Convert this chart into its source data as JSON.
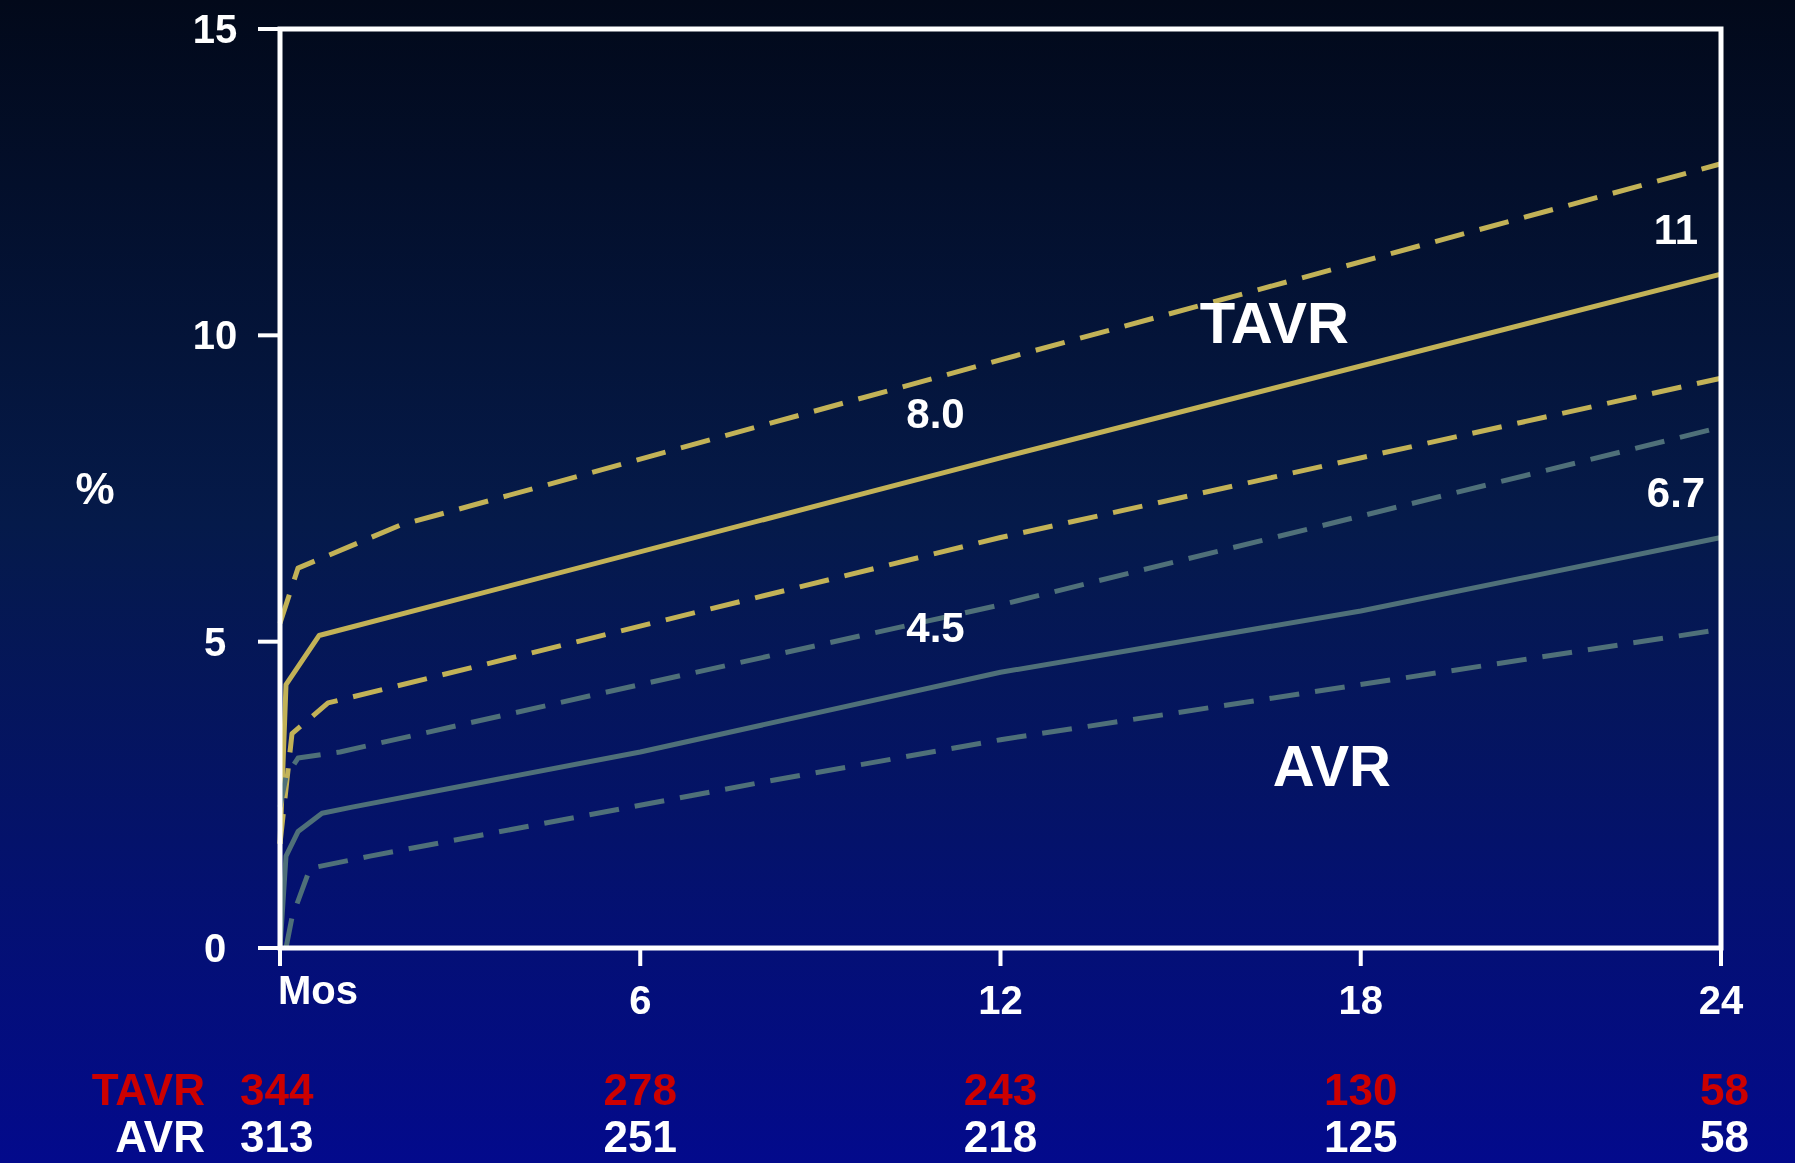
{
  "chart_data": {
    "type": "line",
    "ylabel": "%",
    "xlim": [
      0,
      24
    ],
    "ylim": [
      0,
      15
    ],
    "xticks": [
      {
        "value": 0,
        "label": "Mos"
      },
      6,
      12,
      18,
      24
    ],
    "yticks": [
      0,
      5,
      10,
      15
    ],
    "grid": false,
    "marker": "none",
    "series": [
      {
        "color": "#c2b257",
        "line_style": "dashed",
        "x": [
          0,
          0.3,
          2,
          12,
          24
        ],
        "values": [
          5.3,
          6.2,
          6.9,
          9.6,
          12.8
        ]
      },
      {
        "name": "TAVR",
        "color": "#c2b257",
        "line_style": "solid",
        "x": [
          0,
          0.1,
          0.65,
          12,
          24
        ],
        "values": [
          1.7,
          4.3,
          5.1,
          8.0,
          11
        ],
        "value_labels": [
          null,
          null,
          null,
          "8.0",
          "11"
        ]
      },
      {
        "color": "#c2b257",
        "line_style": "dashed",
        "x": [
          0,
          0.2,
          0.8,
          12,
          24
        ],
        "values": [
          1.7,
          3.5,
          4.0,
          6.7,
          9.3
        ]
      },
      {
        "color": "#4f7079",
        "line_style": "dashed",
        "x": [
          0,
          0.1,
          0.3,
          1,
          6,
          12,
          24
        ],
        "values": [
          2.3,
          2.8,
          3.1,
          3.2,
          4.3,
          5.6,
          8.5
        ]
      },
      {
        "name": "AVR",
        "color": "#4f7079",
        "line_style": "solid",
        "x": [
          0,
          0.1,
          0.3,
          0.7,
          1.2,
          6,
          12,
          18,
          24
        ],
        "values": [
          0,
          1.5,
          1.9,
          2.2,
          2.3,
          3.2,
          4.5,
          5.5,
          6.7
        ],
        "value_labels": [
          null,
          null,
          null,
          null,
          null,
          null,
          "4.5",
          null,
          "6.7"
        ]
      },
      {
        "color": "#4f7079",
        "line_style": "dashed",
        "x": [
          0.1,
          0.2,
          0.5,
          1.5,
          8,
          12,
          24
        ],
        "values": [
          0,
          0.5,
          1.3,
          1.5,
          2.7,
          3.4,
          5.2
        ]
      }
    ],
    "annotations": [
      "TAVR",
      "344",
      "278",
      "243",
      "130",
      "58",
      "AVR",
      "313",
      "251",
      "218",
      "125",
      "58"
    ]
  }
}
